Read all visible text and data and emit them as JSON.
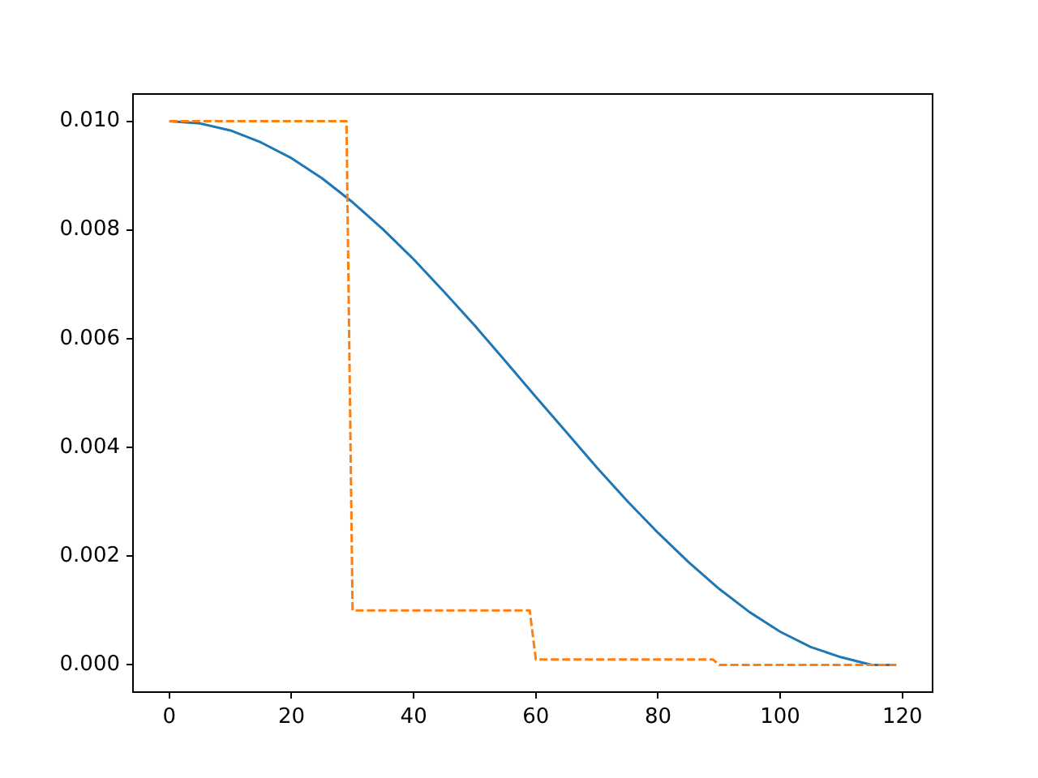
{
  "chart_data": {
    "type": "line",
    "xlim": [
      -5.95,
      124.95
    ],
    "xticks": [
      0,
      20,
      40,
      60,
      80,
      100,
      120
    ],
    "ylim": [
      -0.0005,
      0.0105
    ],
    "yticks": [
      {
        "value": 0,
        "label": "0.000"
      },
      {
        "value": 0.002,
        "label": "0.002"
      },
      {
        "value": 0.004,
        "label": "0.004"
      },
      {
        "value": 0.006,
        "label": "0.006"
      },
      {
        "value": 0.008,
        "label": "0.008"
      },
      {
        "value": 0.01,
        "label": "0.010"
      }
    ],
    "grid": false,
    "legend": false,
    "marker": "none",
    "series": [
      {
        "color": "#1f77b4",
        "line_style": "solid",
        "x": [
          0,
          5,
          10,
          15,
          20,
          25,
          30,
          35,
          40,
          45,
          50,
          55,
          60,
          65,
          70,
          75,
          80,
          85,
          90,
          95,
          100,
          105,
          110,
          115,
          119
        ],
        "values": [
          0.01,
          0.00996,
          0.00983,
          0.00961,
          0.00932,
          0.00895,
          0.00851,
          0.00801,
          0.00746,
          0.00686,
          0.00624,
          0.00559,
          0.00493,
          0.00428,
          0.00363,
          0.00301,
          0.00243,
          0.00189,
          0.0014,
          0.00097,
          0.00061,
          0.00033,
          0.00014,
          0,
          0
        ]
      },
      {
        "color": "#ff7f0e",
        "line_style": "dashed",
        "x": [
          0,
          29,
          30,
          59,
          60,
          89,
          90,
          119
        ],
        "values": [
          0.01,
          0.01,
          0.001,
          0.001,
          0.0001,
          0.0001,
          0,
          0
        ]
      }
    ]
  }
}
